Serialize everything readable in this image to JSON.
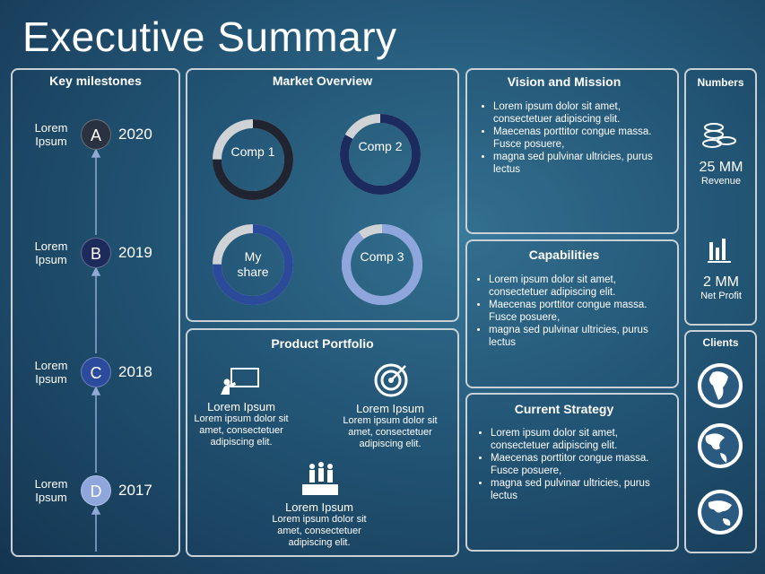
{
  "title": "Executive Summary",
  "milestones": {
    "heading": "Key milestones",
    "items": [
      {
        "label": "Lorem Ipsum",
        "letter": "A",
        "year": "2020",
        "color": "#2a3140"
      },
      {
        "label": "Lorem Ipsum",
        "letter": "B",
        "year": "2019",
        "color": "#1d2a5c"
      },
      {
        "label": "Lorem Ipsum",
        "letter": "C",
        "year": "2018",
        "color": "#2d4b9c"
      },
      {
        "label": "Lorem Ipsum",
        "letter": "D",
        "year": "2017",
        "color": "#8ea6dc"
      }
    ]
  },
  "market_overview": {
    "heading": "Market Overview",
    "donuts": [
      {
        "label": "Comp 1",
        "value": 75,
        "color": "#1f2430"
      },
      {
        "label": "Comp 2",
        "value": 83,
        "color": "#1c2b5e"
      },
      {
        "label": "My share",
        "value": 75,
        "color": "#2b4a9a"
      },
      {
        "label": "Comp 3",
        "value": 90,
        "color": "#8ea6dc"
      }
    ]
  },
  "product_portfolio": {
    "heading": "Product Portfolio",
    "items": [
      {
        "title": "Lorem Ipsum",
        "text": "Lorem ipsum dolor sit amet, consectetuer adipiscing elit."
      },
      {
        "title": "Lorem Ipsum",
        "text": "Lorem ipsum dolor sit amet, consectetuer adipiscing elit."
      },
      {
        "title": "Lorem Ipsum",
        "text": "Lorem ipsum dolor sit amet, consectetuer adipiscing elit."
      }
    ]
  },
  "vision_mission": {
    "heading": "Vision and Mission",
    "bullets": [
      "Lorem ipsum dolor sit amet, consectetuer adipiscing elit.",
      "Maecenas porttitor congue massa. Fusce posuere,",
      "magna sed pulvinar ultricies, purus lectus"
    ]
  },
  "capabilities": {
    "heading": "Capabilities",
    "bullets": [
      "Lorem ipsum dolor sit amet, consectetuer adipiscing elit.",
      "Maecenas porttitor congue massa. Fusce posuere,",
      "magna sed pulvinar ultricies, purus lectus"
    ]
  },
  "current_strategy": {
    "heading": "Current Strategy",
    "bullets": [
      "Lorem ipsum dolor sit amet, consectetuer adipiscing elit.",
      "Maecenas porttitor congue massa. Fusce posuere,",
      "magna sed pulvinar ultricies, purus lectus"
    ]
  },
  "numbers": {
    "heading": "Numbers",
    "items": [
      {
        "value": "25 MM",
        "label": "Revenue"
      },
      {
        "value": "2 MM",
        "label": "Net Profit"
      }
    ]
  },
  "clients": {
    "heading": "Clients"
  }
}
